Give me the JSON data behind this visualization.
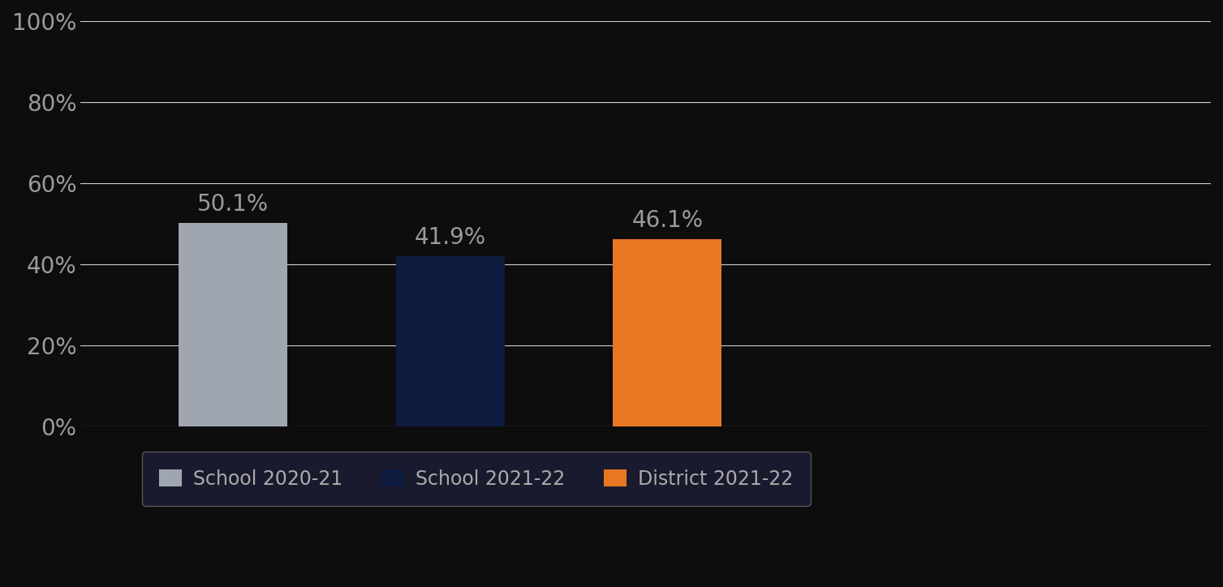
{
  "categories": [
    "School 2020-21",
    "School 2021-22",
    "District 2021-22"
  ],
  "values": [
    50.1,
    41.9,
    46.1
  ],
  "bar_colors": [
    "#a0a6b0",
    "#0d1b3e",
    "#e87722"
  ],
  "label_color": "#9a9a9a",
  "background_color": "#0d0d0d",
  "plot_bg_color": "#0d0d0d",
  "grid_color": "#d0d0d0",
  "tick_color": "#9a9a9a",
  "ylim": [
    0,
    100
  ],
  "yticks": [
    0,
    20,
    40,
    60,
    80,
    100
  ],
  "ytick_labels": [
    "0%",
    "20%",
    "40%",
    "60%",
    "80%",
    "100%"
  ],
  "bar_width": 0.5,
  "value_label_fontsize": 20,
  "tick_fontsize": 20,
  "legend_fontsize": 17,
  "legend_bg_color": "#1a1a2e",
  "legend_edge_color": "#555555",
  "legend_text_color": "#aaaaaa"
}
